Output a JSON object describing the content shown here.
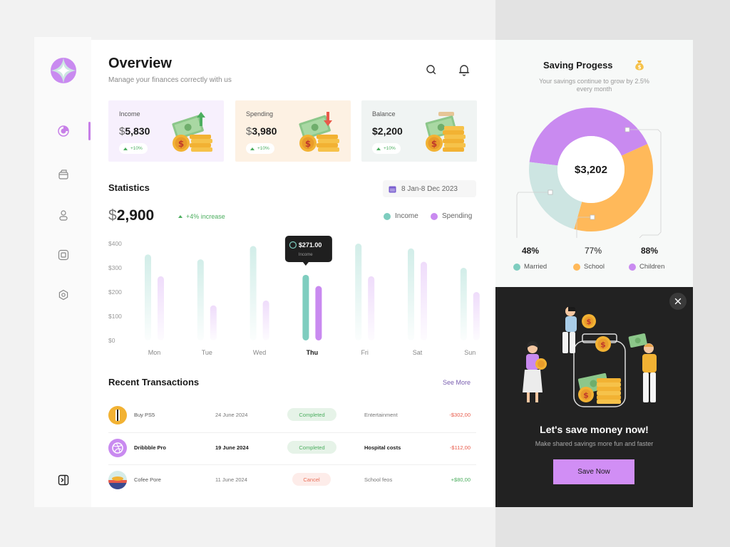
{
  "header": {
    "title": "Overview",
    "subtitle": "Manage your finances correctly with us",
    "search_icon": "search-icon",
    "bell_icon": "bell-icon"
  },
  "sidebar": {
    "items": [
      {
        "name": "pie-chart-icon",
        "active": true
      },
      {
        "name": "wallet-icon",
        "active": false
      },
      {
        "name": "user-icon",
        "active": false
      },
      {
        "name": "card-icon",
        "active": false
      },
      {
        "name": "settings-icon",
        "active": false
      }
    ],
    "collapse_icon": "collapse-icon",
    "accent": "#c77fe8"
  },
  "cards": [
    {
      "label": "Income",
      "currency": "$",
      "amount": "5,830",
      "change": "+10%",
      "bg": "#f7f0fd"
    },
    {
      "label": "Spending",
      "currency": "$",
      "amount": "3,980",
      "change": "+10%",
      "bg": "#fdf1e3"
    },
    {
      "label": "Balance",
      "currency": "$",
      "amount": "2,200",
      "change": "+10%",
      "bg": "#f0f4f3"
    }
  ],
  "statistics": {
    "title": "Statistics",
    "date_range": "8 Jan-8 Dec 2023",
    "currency": "$",
    "total": "2,900",
    "change": "+4% increase",
    "legend": {
      "income": "Income",
      "spending": "Spending"
    },
    "tooltip": {
      "value": "$271.00",
      "label": "Income"
    }
  },
  "chart_data": {
    "type": "bar",
    "categories": [
      "Mon",
      "Tue",
      "Wed",
      "Thu",
      "Fri",
      "Sat",
      "Sun"
    ],
    "series": [
      {
        "name": "Income",
        "values": [
          355,
          335,
          390,
          271,
          400,
          380,
          300
        ]
      },
      {
        "name": "Spending",
        "values": [
          265,
          145,
          165,
          225,
          265,
          325,
          200
        ]
      }
    ],
    "ytick_labels": [
      "$400",
      "$300",
      "$200",
      "$100",
      "$0"
    ],
    "yticks": [
      400,
      300,
      200,
      100,
      0
    ],
    "ylim": [
      0,
      400
    ],
    "highlight_index": 3,
    "colors": {
      "income": "#7ecdbf",
      "spending": "#c98af0"
    }
  },
  "transactions": {
    "title": "Recent Transactions",
    "see_more": "See More",
    "rows": [
      {
        "name": "Buy PS5",
        "date": "24 June 2024",
        "status": "Completed",
        "category": "Entertainment",
        "amount": "-$302,00",
        "type": "out"
      },
      {
        "name": "Dribbble Pro",
        "date": "19 June 2024",
        "status": "Completed",
        "category": "Hospital costs",
        "amount": "-$112,00",
        "type": "out"
      },
      {
        "name": "Cofee Pore",
        "date": "11 June 2024",
        "status": "Cancel",
        "category": "School feos",
        "amount": "+$80,00",
        "type": "in"
      }
    ]
  },
  "saving": {
    "title": "Saving Progess",
    "subtitle": "Your savings continue to grow by 2.5% every month",
    "total": "$3,202",
    "segments": [
      {
        "label": "Married",
        "percent": "48%",
        "value": 48,
        "color": "#cde5e2"
      },
      {
        "label": "School",
        "percent": "77%",
        "value": 77,
        "color": "#ffb95a"
      },
      {
        "label": "Children",
        "percent": "88%",
        "value": 88,
        "color": "#c98af0"
      }
    ]
  },
  "promo": {
    "title": "Let's save money now!",
    "subtitle": "Make shared savings more fun and faster",
    "button": "Save Now"
  }
}
